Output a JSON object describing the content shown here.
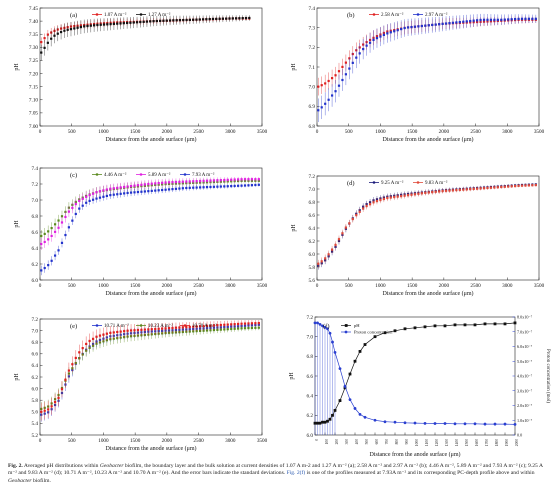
{
  "figure": {
    "caption": {
      "label": "Fig. 2.",
      "p1": "Averaged pH distributions within",
      "org1": "Geobacter",
      "p2": "biofilm, the boundary layer and the bulk solution at current densities of 1.07 A m-2 and 1.27 A m⁻² (a); 2.58 A m⁻² and 2.97 A m⁻² (b); 4.46 A m⁻², 5.89 A m⁻² and 7.93 A m⁻² (c); 9.25 A m⁻² and 9.83 A m⁻² (d); 10.71 A m⁻², 10.23 A m⁻² and 10.70 A m⁻² (e). And the error bars indicate the standard deviations.",
      "ref": "Fig. 2(f)",
      "p3": "is one of the profiles measured at 7.93A m⁻² and its corresponding PC-depth profile above and within",
      "org2": "Geobacter",
      "p4": "biofilm."
    }
  },
  "chart_data": [
    {
      "panel": "(a)",
      "type": "scatter",
      "xlabel": "Distance from the anode surface (μm)",
      "ylabel": "pH",
      "xlim": [
        0,
        3500
      ],
      "ylim": [
        7.0,
        7.45
      ],
      "xticks": [
        "0",
        "500",
        "1000",
        "1500",
        "2000",
        "2500",
        "3000",
        "3500"
      ],
      "yticks": [
        "7.00",
        "7.05",
        "7.10",
        "7.15",
        "7.20",
        "7.25",
        "7.30",
        "7.35",
        "7.40",
        "7.45"
      ],
      "legend_position": "top",
      "series": [
        {
          "name": "1.07 A m⁻²",
          "color": "#e02020",
          "err": 0.012,
          "x": [
            30,
            100,
            200,
            300,
            400,
            500,
            700,
            900,
            1200,
            1500,
            1800,
            2100,
            2400,
            2700,
            3000,
            3300
          ],
          "y": [
            7.32,
            7.345,
            7.36,
            7.37,
            7.375,
            7.38,
            7.385,
            7.39,
            7.395,
            7.397,
            7.4,
            7.402,
            7.405,
            7.407,
            7.41,
            7.41
          ]
        },
        {
          "name": "1.27 A m⁻²",
          "color": "#111111",
          "err": 0.02,
          "x": [
            30,
            100,
            200,
            300,
            400,
            500,
            700,
            900,
            1200,
            1500,
            1800,
            2100,
            2400,
            2700,
            3000,
            3300
          ],
          "y": [
            7.28,
            7.31,
            7.34,
            7.355,
            7.365,
            7.37,
            7.38,
            7.385,
            7.39,
            7.395,
            7.4,
            7.403,
            7.405,
            7.408,
            7.41,
            7.412
          ]
        }
      ]
    },
    {
      "panel": "(b)",
      "type": "scatter",
      "xlabel": "Distance from the anode surface (μm)",
      "ylabel": "pH",
      "xlim": [
        0,
        3500
      ],
      "ylim": [
        6.8,
        7.4
      ],
      "xticks": [
        "0",
        "500",
        "1000",
        "1500",
        "2000",
        "2500",
        "3000",
        "3500"
      ],
      "yticks": [
        "6.8",
        "6.9",
        "7.0",
        "7.1",
        "7.2",
        "7.3",
        "7.4"
      ],
      "legend_position": "top",
      "series": [
        {
          "name": "2.58 A m⁻²",
          "color": "#e02020",
          "err": 0.03,
          "x": [
            30,
            150,
            300,
            450,
            600,
            750,
            900,
            1100,
            1400,
            1700,
            2000,
            2300,
            2600,
            2900,
            3200,
            3450
          ],
          "y": [
            7.0,
            7.02,
            7.06,
            7.12,
            7.18,
            7.22,
            7.25,
            7.28,
            7.3,
            7.31,
            7.32,
            7.325,
            7.33,
            7.335,
            7.34,
            7.34
          ]
        },
        {
          "name": "2.97 A m⁻²",
          "color": "#2233cc",
          "err": 0.04,
          "x": [
            30,
            150,
            300,
            450,
            600,
            750,
            900,
            1100,
            1400,
            1700,
            2000,
            2300,
            2600,
            2900,
            3200,
            3450
          ],
          "y": [
            6.88,
            6.92,
            6.98,
            7.06,
            7.14,
            7.2,
            7.24,
            7.27,
            7.3,
            7.31,
            7.32,
            7.33,
            7.34,
            7.34,
            7.345,
            7.345
          ]
        }
      ]
    },
    {
      "panel": "(c)",
      "type": "scatter",
      "xlabel": "Distance from the anode surface (μm)",
      "ylabel": "pH",
      "xlim": [
        0,
        3500
      ],
      "ylim": [
        6.0,
        7.4
      ],
      "xticks": [
        "0",
        "500",
        "1000",
        "1500",
        "2000",
        "2500",
        "3000",
        "3500"
      ],
      "yticks": [
        "6.0",
        "6.2",
        "6.4",
        "6.6",
        "6.8",
        "7.0",
        "7.2",
        "7.4"
      ],
      "legend_position": "top",
      "series": [
        {
          "name": "4.46 A m⁻²",
          "color": "#5a8a1e",
          "err": 0.05,
          "x": [
            30,
            150,
            300,
            450,
            600,
            750,
            900,
            1100,
            1400,
            1700,
            2000,
            2300,
            2600,
            2900,
            3200,
            3450
          ],
          "y": [
            6.55,
            6.62,
            6.75,
            6.9,
            7.0,
            7.06,
            7.1,
            7.13,
            7.16,
            7.18,
            7.2,
            7.21,
            7.22,
            7.23,
            7.24,
            7.24
          ]
        },
        {
          "name": "5.89 A m⁻²",
          "color": "#e020e0",
          "err": 0.05,
          "x": [
            30,
            150,
            300,
            450,
            600,
            750,
            900,
            1100,
            1400,
            1700,
            2000,
            2300,
            2600,
            2900,
            3200,
            3450
          ],
          "y": [
            6.45,
            6.52,
            6.66,
            6.85,
            6.98,
            7.05,
            7.1,
            7.14,
            7.17,
            7.2,
            7.22,
            7.23,
            7.24,
            7.25,
            7.26,
            7.26
          ]
        },
        {
          "name": "7.93 A m⁻²",
          "color": "#2233cc",
          "err": 0.04,
          "x": [
            30,
            150,
            300,
            450,
            600,
            750,
            900,
            1100,
            1400,
            1700,
            2000,
            2300,
            2600,
            2900,
            3200,
            3450
          ],
          "y": [
            6.12,
            6.2,
            6.38,
            6.65,
            6.88,
            6.98,
            7.02,
            7.06,
            7.09,
            7.11,
            7.13,
            7.15,
            7.16,
            7.17,
            7.18,
            7.19
          ]
        }
      ]
    },
    {
      "panel": "(d)",
      "type": "scatter",
      "xlabel": "Distance from the anode surface (μm)",
      "ylabel": "pH",
      "xlim": [
        0,
        3500
      ],
      "ylim": [
        5.6,
        7.2
      ],
      "xticks": [
        "0",
        "500",
        "1000",
        "1500",
        "2000",
        "2500",
        "3000",
        "3500"
      ],
      "yticks": [
        "5.6",
        "5.8",
        "6.0",
        "6.2",
        "6.4",
        "6.6",
        "6.8",
        "7.0",
        "7.2"
      ],
      "legend_position": "top",
      "series": [
        {
          "name": "9.25 A m⁻²",
          "color": "#1a1a7a",
          "err": 0.04,
          "x": [
            30,
            150,
            300,
            450,
            600,
            750,
            900,
            1100,
            1400,
            1700,
            2000,
            2300,
            2600,
            2900,
            3200,
            3450
          ],
          "y": [
            5.82,
            5.92,
            6.12,
            6.38,
            6.6,
            6.75,
            6.83,
            6.88,
            6.92,
            6.95,
            6.98,
            7.0,
            7.02,
            7.04,
            7.06,
            7.07
          ]
        },
        {
          "name": "9.83 A m⁻²",
          "color": "#e04a3a",
          "err": 0.04,
          "x": [
            30,
            150,
            300,
            450,
            600,
            750,
            900,
            1100,
            1400,
            1700,
            2000,
            2300,
            2600,
            2900,
            3200,
            3450
          ],
          "y": [
            5.85,
            5.95,
            6.15,
            6.4,
            6.58,
            6.72,
            6.8,
            6.86,
            6.9,
            6.94,
            6.97,
            6.99,
            7.01,
            7.03,
            7.05,
            7.06
          ]
        }
      ]
    },
    {
      "panel": "(e)",
      "type": "scatter",
      "xlabel": "Distance from the anode surface (μm)",
      "ylabel": "pH",
      "xlim": [
        0,
        3500
      ],
      "ylim": [
        5.2,
        7.2
      ],
      "xticks": [
        "0",
        "500",
        "1000",
        "1500",
        "2000",
        "2500",
        "3000",
        "3500"
      ],
      "yticks": [
        "5.2",
        "5.4",
        "5.6",
        "5.8",
        "6.0",
        "6.2",
        "6.4",
        "6.6",
        "6.8",
        "7.0",
        "7.2"
      ],
      "legend_position": "top",
      "series": [
        {
          "name": "10.71 A m⁻²",
          "color": "#2233cc",
          "err": 0.08,
          "x": [
            30,
            150,
            300,
            450,
            600,
            750,
            900,
            1100,
            1400,
            1700,
            2000,
            2300,
            2600,
            2900,
            3200,
            3450
          ],
          "y": [
            5.55,
            5.6,
            5.8,
            6.2,
            6.5,
            6.7,
            6.82,
            6.9,
            6.95,
            6.98,
            7.0,
            7.02,
            7.04,
            7.06,
            7.08,
            7.1
          ]
        },
        {
          "name": "10.23 A m⁻²",
          "color": "#5a8a1e",
          "err": 0.08,
          "x": [
            30,
            150,
            300,
            450,
            600,
            750,
            900,
            1100,
            1400,
            1700,
            2000,
            2300,
            2600,
            2900,
            3200,
            3450
          ],
          "y": [
            5.65,
            5.7,
            5.9,
            6.25,
            6.5,
            6.68,
            6.78,
            6.85,
            6.9,
            6.93,
            6.96,
            6.98,
            7.0,
            7.02,
            7.04,
            7.05
          ]
        },
        {
          "name": "10.70 A m⁻²",
          "color": "#e02020",
          "err": 0.1,
          "x": [
            30,
            150,
            300,
            450,
            600,
            750,
            900,
            1100,
            1400,
            1700,
            2000,
            2300,
            2600,
            2900,
            3200,
            3450
          ],
          "y": [
            5.6,
            5.65,
            5.85,
            6.3,
            6.6,
            6.8,
            6.9,
            6.96,
            7.0,
            7.02,
            7.04,
            7.06,
            7.08,
            7.1,
            7.12,
            7.13
          ]
        }
      ]
    },
    {
      "panel": "(f)",
      "type": "line",
      "xlabel": "Distance from the anode surface (μm)",
      "ylabel": "pH",
      "ylabel_right": "Proton concentration (mol)",
      "xlim": [
        0,
        2000
      ],
      "ylim": [
        6.0,
        7.2
      ],
      "ylim_right": [
        0,
        8e-07
      ],
      "xticks": [
        "0",
        "100",
        "200",
        "300",
        "400",
        "500",
        "600",
        "700",
        "800",
        "900",
        "1000",
        "1100",
        "1200",
        "1300",
        "1400",
        "1500",
        "1600",
        "1700",
        "1800",
        "1900",
        "2000"
      ],
      "yticks": [
        "6.0",
        "6.2",
        "6.4",
        "6.6",
        "6.8",
        "7.0",
        "7.2"
      ],
      "yticks_right": [
        "0.0",
        "1.0x10⁻⁷",
        "2.0x10⁻⁷",
        "3.0x10⁻⁷",
        "4.0x10⁻⁷",
        "5.0x10⁻⁷",
        "6.0x10⁻⁷",
        "7.0x10⁻⁷",
        "8.0x10⁻⁷"
      ],
      "legend_position": "top-left",
      "series": [
        {
          "name": "pH",
          "axis": "left",
          "color": "#111111",
          "marker": "square",
          "x": [
            0,
            25,
            50,
            75,
            100,
            125,
            150,
            175,
            200,
            250,
            300,
            350,
            400,
            450,
            500,
            600,
            700,
            800,
            900,
            1000,
            1100,
            1200,
            1300,
            1400,
            1500,
            1600,
            1700,
            1800,
            1900,
            2000
          ],
          "y": [
            6.12,
            6.12,
            6.12,
            6.13,
            6.13,
            6.14,
            6.16,
            6.2,
            6.25,
            6.35,
            6.48,
            6.62,
            6.75,
            6.85,
            6.92,
            7.0,
            7.04,
            7.06,
            7.08,
            7.09,
            7.1,
            7.11,
            7.11,
            7.12,
            7.12,
            7.12,
            7.13,
            7.13,
            7.13,
            7.14
          ]
        },
        {
          "name": "Proton concentration",
          "axis": "right",
          "color": "#2a3fd0",
          "marker": "circle",
          "x": [
            0,
            25,
            50,
            75,
            100,
            125,
            150,
            175,
            200,
            250,
            300,
            350,
            400,
            450,
            500,
            600,
            700,
            800,
            900,
            1000,
            1100,
            1200,
            1300,
            1400,
            1500,
            1600,
            1700,
            1800,
            1900,
            2000
          ],
          "y": [
            7.6e-07,
            7.6e-07,
            7.5e-07,
            7.4e-07,
            7.3e-07,
            7.2e-07,
            6.9e-07,
            6.3e-07,
            5.6e-07,
            4.5e-07,
            3.3e-07,
            2.4e-07,
            1.8e-07,
            1.4e-07,
            1.2e-07,
            1e-07,
            9e-08,
            8.7e-08,
            8.3e-08,
            8.1e-08,
            7.9e-08,
            7.8e-08,
            7.8e-08,
            7.6e-08,
            7.6e-08,
            7.6e-08,
            7.4e-08,
            7.4e-08,
            7.4e-08,
            7.2e-08
          ]
        }
      ],
      "vertical_bars": {
        "color": "#2a3fd0",
        "x_max": 200
      }
    }
  ]
}
